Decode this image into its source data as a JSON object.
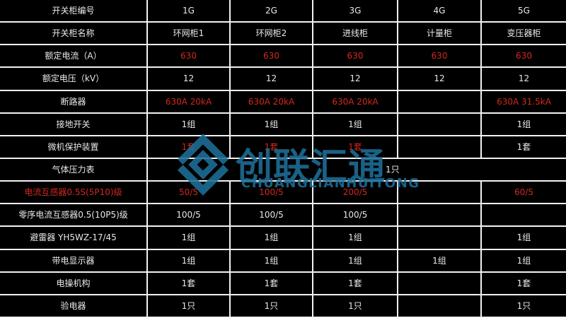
{
  "watermark": {
    "cn": "创联汇通",
    "en": "CHUANGLIANHUITONG",
    "color": "#1e6f99",
    "logo": "knot-chevron-logo"
  },
  "colors": {
    "background": "#000000",
    "grid_line": "#f2f2f2",
    "text_white": "#e9e9e9",
    "text_red": "#d2291e"
  },
  "table": {
    "label_column_header": "",
    "columns": [
      "1G",
      "2G",
      "3G",
      "4G",
      "5G"
    ],
    "rows": [
      {
        "label": "开关柜编号",
        "label_color": "white",
        "values": [
          "1G",
          "2G",
          "3G",
          "4G",
          "5G"
        ],
        "value_colors": [
          "white",
          "white",
          "white",
          "white",
          "white"
        ]
      },
      {
        "label": "开关柜名称",
        "label_color": "white",
        "values": [
          "环网柜1",
          "环网柜2",
          "进线柜",
          "计量柜",
          "变压器柜"
        ],
        "value_colors": [
          "white",
          "white",
          "white",
          "white",
          "white"
        ]
      },
      {
        "label": "额定电流（A）",
        "label_color": "white",
        "values": [
          "630",
          "630",
          "630",
          "630",
          "630"
        ],
        "value_colors": [
          "red",
          "red",
          "red",
          "red",
          "red"
        ]
      },
      {
        "label": "额定电压（kV）",
        "label_color": "white",
        "values": [
          "12",
          "12",
          "12",
          "12",
          "12"
        ],
        "value_colors": [
          "white",
          "white",
          "white",
          "white",
          "white"
        ]
      },
      {
        "label": "断路器",
        "label_color": "white",
        "values": [
          "630A 20kA",
          "630A 20kA",
          "630A 20kA",
          "",
          "630A 31.5kA"
        ],
        "value_colors": [
          "red",
          "red",
          "red",
          "red",
          "red"
        ]
      },
      {
        "label": "接地开关",
        "label_color": "white",
        "values": [
          "1组",
          "1组",
          "1组",
          "",
          "1组"
        ],
        "value_colors": [
          "white",
          "white",
          "white",
          "white",
          "white"
        ]
      },
      {
        "label": "微机保护装置",
        "label_color": "white",
        "values": [
          "1套",
          "1套",
          "1套",
          "",
          "1套"
        ],
        "value_colors": [
          "red",
          "red",
          "red",
          "white",
          "white"
        ]
      },
      {
        "label": "气体压力表",
        "label_color": "white",
        "merged": true,
        "merged_value": "1只",
        "merged_value_color": "white"
      },
      {
        "label": "电流互感器0.5S(5P10)级",
        "label_color": "red",
        "values": [
          "50/5",
          "100/5",
          "200/5",
          "",
          "60/5"
        ],
        "value_colors": [
          "red",
          "red",
          "red",
          "red",
          "red"
        ]
      },
      {
        "label": "零序电流互感器0.5(10P5)级",
        "label_color": "white",
        "values": [
          "100/5",
          "100/5",
          "100/5",
          "",
          ""
        ],
        "value_colors": [
          "white",
          "white",
          "white",
          "white",
          "white"
        ]
      },
      {
        "label": "避雷器 YH5WZ-17/45",
        "label_color": "white",
        "values": [
          "1组",
          "1组",
          "1组",
          "",
          "1组"
        ],
        "value_colors": [
          "white",
          "white",
          "white",
          "white",
          "white"
        ]
      },
      {
        "label": "带电显示器",
        "label_color": "white",
        "values": [
          "1组",
          "1组",
          "1组",
          "1组",
          "1组"
        ],
        "value_colors": [
          "white",
          "white",
          "white",
          "white",
          "white"
        ]
      },
      {
        "label": "电操机构",
        "label_color": "white",
        "values": [
          "1套",
          "1套",
          "1套",
          "",
          "1套"
        ],
        "value_colors": [
          "white",
          "white",
          "white",
          "white",
          "white"
        ]
      },
      {
        "label": "验电器",
        "label_color": "white",
        "values": [
          "1只",
          "1只",
          "1只",
          "",
          "1只"
        ],
        "value_colors": [
          "white",
          "white",
          "white",
          "white",
          "white"
        ]
      }
    ]
  }
}
